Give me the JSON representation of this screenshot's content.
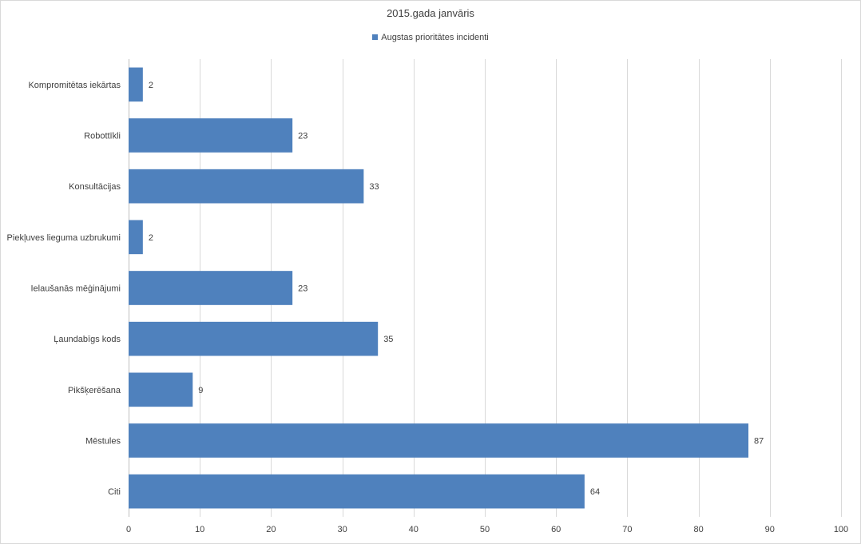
{
  "chart_data": {
    "type": "bar",
    "orientation": "horizontal",
    "title": "2015.gada janvāris",
    "categories": [
      "Kompromitētas iekārtas",
      "Robottīkli",
      "Konsultācijas",
      "Piekļuves lieguma uzbrukumi",
      "Ielaušanās mēģinājumi",
      "Ļaundabīgs kods",
      "Pikšķerēšana",
      "Mēstules",
      "Citi"
    ],
    "series": [
      {
        "name": "Augstas prioritātes incidenti",
        "values": [
          2,
          23,
          33,
          2,
          23,
          35,
          9,
          87,
          64
        ]
      }
    ],
    "xlim": [
      0,
      100
    ],
    "xticks": [
      0,
      10,
      20,
      30,
      40,
      50,
      60,
      70,
      80,
      90,
      100
    ],
    "grid": true,
    "legend_position": "top",
    "data_labels": true,
    "bar_color": "#4f81bd",
    "grid_color": "#d9d9d9"
  }
}
